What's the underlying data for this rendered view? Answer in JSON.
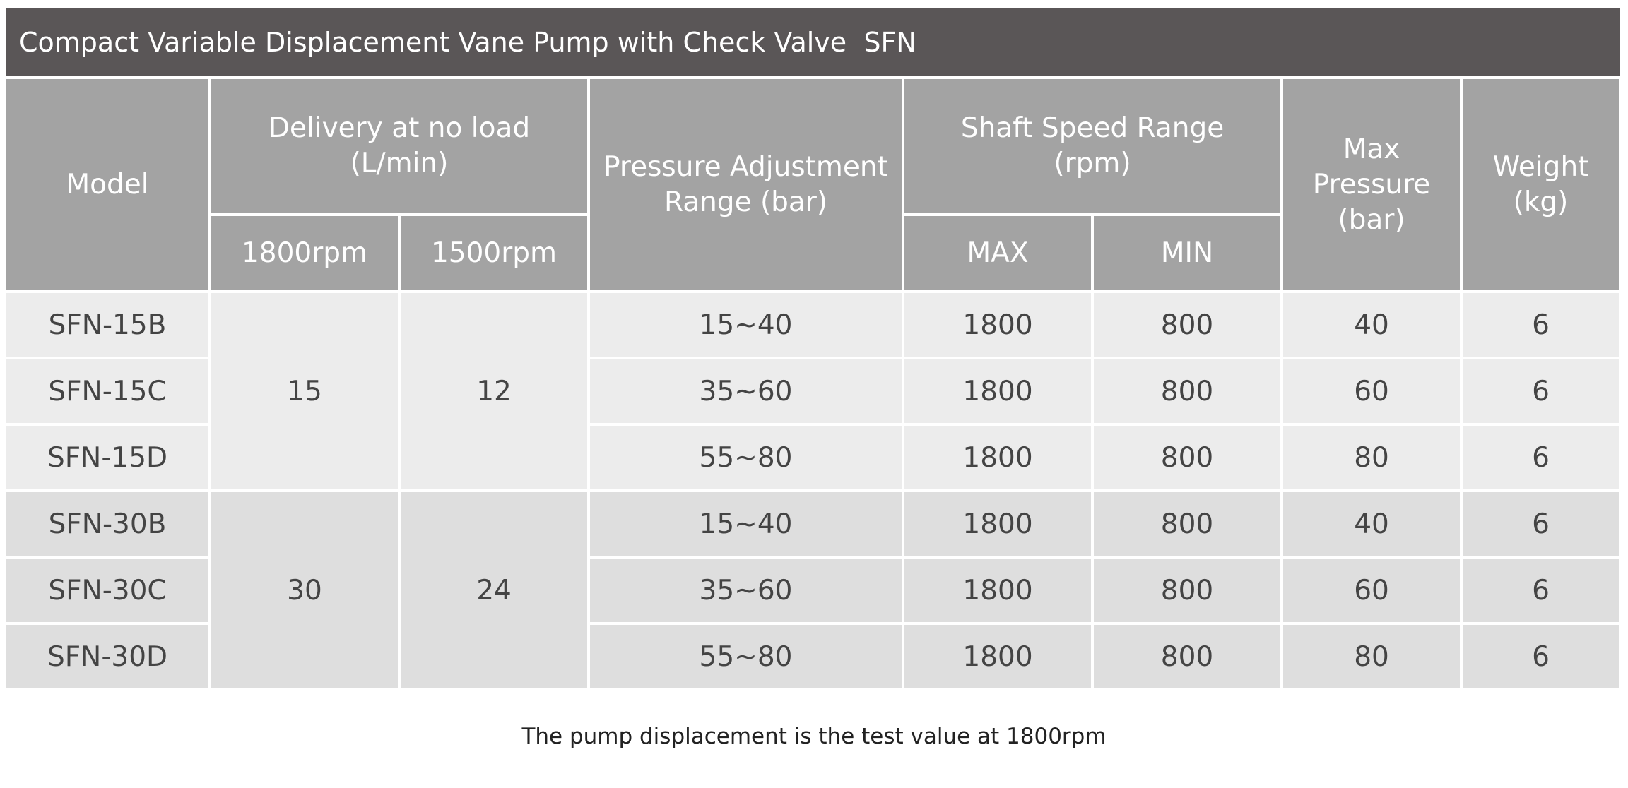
{
  "title": "Compact Variable Displacement Vane Pump with Check Valve  SFN",
  "table": {
    "header": {
      "model": [
        "Model"
      ],
      "delivery": [
        "Delivery at no load",
        "(L/min)"
      ],
      "delivery_1800": [
        "1800rpm"
      ],
      "delivery_1500": [
        "1500rpm"
      ],
      "pressure_range": [
        "Pressure Adjustment",
        "Range (bar)"
      ],
      "shaft_speed": [
        "Shaft Speed Range",
        "(rpm)"
      ],
      "shaft_max": [
        "MAX"
      ],
      "shaft_min": [
        "MIN"
      ],
      "max_pressure": [
        "Max",
        "Pressure",
        "(bar)"
      ],
      "weight": [
        "Weight",
        "(kg)"
      ]
    },
    "groups": [
      {
        "delivery_1800": 15,
        "delivery_1500": 12,
        "rows": [
          [
            "SFN-15B",
            "15~40",
            1800,
            800,
            40,
            6
          ],
          [
            "SFN-15C",
            "35~60",
            1800,
            800,
            60,
            6
          ],
          [
            "SFN-15D",
            "55~80",
            1800,
            800,
            80,
            6
          ]
        ]
      },
      {
        "delivery_1800": 30,
        "delivery_1500": 24,
        "rows": [
          [
            "SFN-30B",
            "15~40",
            1800,
            800,
            40,
            6
          ],
          [
            "SFN-30C",
            "35~60",
            1800,
            800,
            60,
            6
          ],
          [
            "SFN-30D",
            "55~80",
            1800,
            800,
            80,
            6
          ]
        ]
      }
    ]
  },
  "footnote": "The pump displacement is the test value at 1800rpm"
}
